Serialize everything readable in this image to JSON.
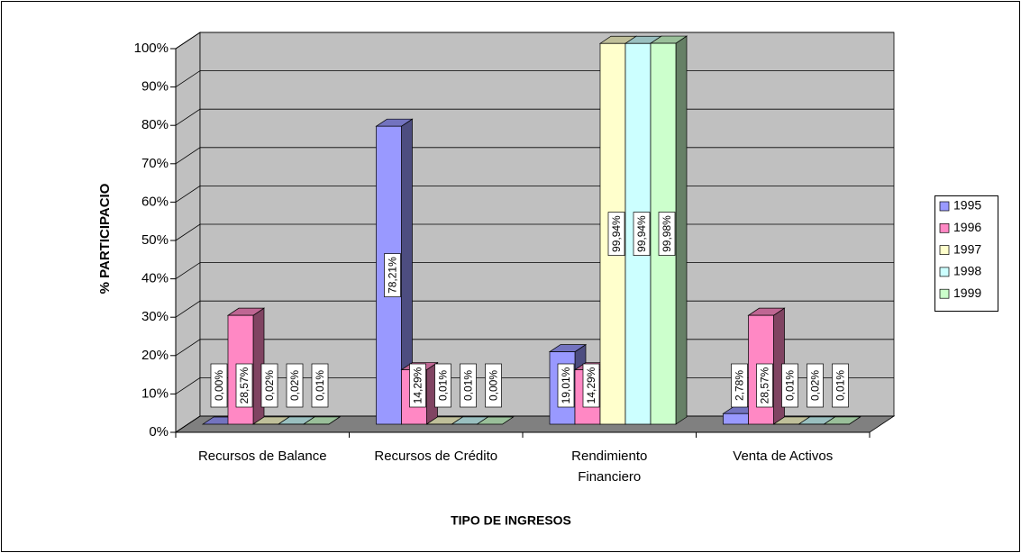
{
  "chart_data": {
    "type": "bar3d",
    "xlabel": "TIPO DE INGRESOS",
    "ylabel": "% PARTICIPACIO",
    "categories": [
      "Recursos de Balance",
      "Recursos de Crédito",
      "Rendimiento\nFinanciero",
      "Venta de Activos"
    ],
    "series": [
      {
        "name": "1995",
        "color": "#9999ff",
        "values": [
          0.0,
          78.21,
          19.01,
          2.78
        ],
        "value_labels": [
          "0,00%",
          "78,21%",
          "19,01%",
          "2,78%"
        ]
      },
      {
        "name": "1996",
        "color": "#ff88c4",
        "values": [
          28.57,
          14.29,
          14.29,
          28.57
        ],
        "value_labels": [
          "28,57%",
          "14,29%",
          "14,29%",
          "28,57%"
        ]
      },
      {
        "name": "1997",
        "color": "#ffffcc",
        "values": [
          0.02,
          0.01,
          99.94,
          0.01
        ],
        "value_labels": [
          "0,02%",
          "0,01%",
          "99,94%",
          "0,01%"
        ]
      },
      {
        "name": "1998",
        "color": "#ccffff",
        "values": [
          0.02,
          0.01,
          99.94,
          0.02
        ],
        "value_labels": [
          "0,02%",
          "0,01%",
          "99,94%",
          "0,02%"
        ]
      },
      {
        "name": "1999",
        "color": "#ccffcc",
        "values": [
          0.01,
          0.0,
          99.98,
          0.01
        ],
        "value_labels": [
          "0,01%",
          "0,00%",
          "99,98%",
          "0,01%"
        ]
      }
    ],
    "ylim": [
      0,
      100
    ],
    "yticks": [
      {
        "value": 0,
        "label": "0%"
      },
      {
        "value": 10,
        "label": "10%"
      },
      {
        "value": 20,
        "label": "20%"
      },
      {
        "value": 30,
        "label": "30%"
      },
      {
        "value": 40,
        "label": "40%"
      },
      {
        "value": 50,
        "label": "50%"
      },
      {
        "value": 60,
        "label": "60%"
      },
      {
        "value": 70,
        "label": "70%"
      },
      {
        "value": 80,
        "label": "80%"
      },
      {
        "value": 90,
        "label": "90%"
      },
      {
        "value": 100,
        "label": "100%"
      }
    ],
    "grid": true,
    "legend": "right"
  }
}
